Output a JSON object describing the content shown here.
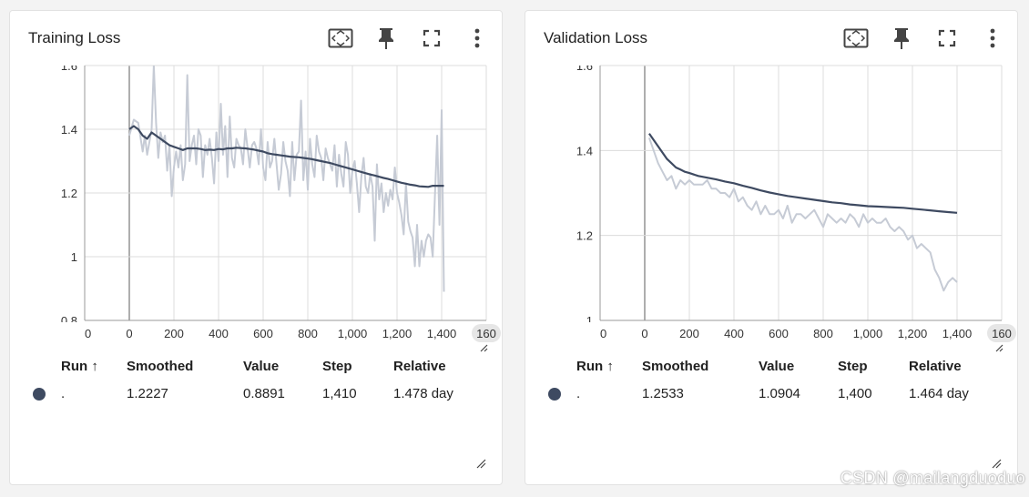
{
  "accent_color": "#3e4a61",
  "raw_color": "#c6cbd5",
  "cards": [
    {
      "title": "Training Loss",
      "toolbar": {
        "fit": "fit-domain-icon",
        "pin": "pin-icon",
        "fullscreen": "fullscreen-icon",
        "more": "more-vert-icon"
      },
      "chart_data": {
        "type": "line",
        "title": "Training Loss",
        "xlim": [
          -200,
          1600
        ],
        "ylim": [
          0.8,
          1.6
        ],
        "x_ticks": [
          "00",
          "0",
          "200",
          "400",
          "600",
          "800",
          "1,000",
          "1,200",
          "1,400",
          "160"
        ],
        "y_ticks": [
          "1.6",
          "1.4",
          "1.2",
          "1",
          "0.8"
        ],
        "series": [
          {
            "name": "raw",
            "x": [
              0,
              20,
              40,
              60,
              70,
              80,
              90,
              100,
              110,
              120,
              130,
              140,
              150,
              160,
              170,
              180,
              190,
              200,
              210,
              220,
              230,
              240,
              250,
              260,
              270,
              280,
              290,
              300,
              310,
              320,
              330,
              340,
              350,
              360,
              370,
              380,
              390,
              400,
              410,
              420,
              430,
              440,
              450,
              460,
              470,
              480,
              490,
              500,
              510,
              520,
              530,
              540,
              550,
              560,
              570,
              580,
              590,
              600,
              610,
              620,
              630,
              640,
              650,
              660,
              670,
              680,
              690,
              700,
              710,
              720,
              730,
              740,
              750,
              760,
              770,
              780,
              790,
              800,
              810,
              820,
              830,
              840,
              850,
              860,
              870,
              880,
              890,
              900,
              910,
              920,
              930,
              940,
              950,
              960,
              970,
              980,
              990,
              1000,
              1010,
              1020,
              1030,
              1040,
              1050,
              1060,
              1070,
              1080,
              1090,
              1100,
              1110,
              1120,
              1130,
              1140,
              1150,
              1160,
              1170,
              1180,
              1190,
              1200,
              1210,
              1220,
              1230,
              1240,
              1250,
              1260,
              1270,
              1280,
              1290,
              1300,
              1310,
              1320,
              1330,
              1340,
              1350,
              1360,
              1370,
              1380,
              1390,
              1400,
              1410
            ],
            "y": [
              1.38,
              1.43,
              1.42,
              1.33,
              1.38,
              1.32,
              1.36,
              1.4,
              1.6,
              1.42,
              1.31,
              1.39,
              1.36,
              1.38,
              1.27,
              1.35,
              1.19,
              1.28,
              1.33,
              1.28,
              1.35,
              1.24,
              1.29,
              1.57,
              1.3,
              1.35,
              1.38,
              1.29,
              1.4,
              1.38,
              1.25,
              1.35,
              1.32,
              1.37,
              1.31,
              1.23,
              1.39,
              1.3,
              1.48,
              1.32,
              1.41,
              1.25,
              1.44,
              1.31,
              1.28,
              1.37,
              1.35,
              1.34,
              1.29,
              1.4,
              1.34,
              1.28,
              1.35,
              1.36,
              1.34,
              1.29,
              1.4,
              1.28,
              1.24,
              1.36,
              1.28,
              1.3,
              1.37,
              1.29,
              1.21,
              1.26,
              1.36,
              1.3,
              1.27,
              1.19,
              1.36,
              1.24,
              1.32,
              1.33,
              1.49,
              1.24,
              1.33,
              1.21,
              1.37,
              1.29,
              1.25,
              1.38,
              1.33,
              1.31,
              1.24,
              1.34,
              1.31,
              1.29,
              1.27,
              1.35,
              1.22,
              1.32,
              1.26,
              1.22,
              1.36,
              1.32,
              1.2,
              1.27,
              1.3,
              1.23,
              1.14,
              1.25,
              1.31,
              1.22,
              1.2,
              1.26,
              1.22,
              1.05,
              1.29,
              1.18,
              1.23,
              1.14,
              1.2,
              1.16,
              1.21,
              1.18,
              1.28,
              1.2,
              1.17,
              1.13,
              1.07,
              1.23,
              1.11,
              1.08,
              1.06,
              0.97,
              1.1,
              0.97,
              1.05,
              1.0,
              1.05,
              1.07,
              1.06,
              1.0,
              1.19,
              1.38,
              1.1,
              1.46,
              0.89
            ]
          },
          {
            "name": "smoothed",
            "x": [
              0,
              20,
              40,
              60,
              80,
              100,
              120,
              140,
              160,
              180,
              200,
              220,
              240,
              260,
              280,
              300,
              320,
              340,
              360,
              380,
              400,
              420,
              440,
              460,
              480,
              500,
              520,
              540,
              560,
              580,
              600,
              620,
              640,
              660,
              680,
              700,
              720,
              740,
              760,
              780,
              800,
              820,
              840,
              860,
              880,
              900,
              920,
              940,
              960,
              980,
              1000,
              1020,
              1040,
              1060,
              1080,
              1100,
              1120,
              1140,
              1160,
              1180,
              1200,
              1220,
              1240,
              1260,
              1280,
              1300,
              1320,
              1340,
              1360,
              1380,
              1400,
              1410
            ],
            "y": [
              1.4,
              1.41,
              1.4,
              1.38,
              1.37,
              1.39,
              1.38,
              1.37,
              1.36,
              1.35,
              1.345,
              1.34,
              1.335,
              1.34,
              1.34,
              1.34,
              1.338,
              1.335,
              1.336,
              1.335,
              1.338,
              1.337,
              1.34,
              1.34,
              1.342,
              1.341,
              1.34,
              1.338,
              1.336,
              1.333,
              1.33,
              1.325,
              1.322,
              1.32,
              1.318,
              1.316,
              1.314,
              1.313,
              1.312,
              1.31,
              1.308,
              1.306,
              1.303,
              1.3,
              1.297,
              1.294,
              1.29,
              1.286,
              1.282,
              1.278,
              1.274,
              1.27,
              1.266,
              1.262,
              1.258,
              1.255,
              1.251,
              1.247,
              1.244,
              1.24,
              1.236,
              1.232,
              1.229,
              1.226,
              1.224,
              1.221,
              1.22,
              1.219,
              1.2225,
              1.2227,
              1.2227,
              1.2227
            ]
          }
        ]
      },
      "table": {
        "headers": [
          "Run ↑",
          "Smoothed",
          "Value",
          "Step",
          "Relative"
        ],
        "rows": [
          {
            "color": "#3e4a61",
            "run": ".",
            "smoothed": "1.2227",
            "value": "0.8891",
            "step": "1,410",
            "relative": "1.478 day"
          }
        ]
      }
    },
    {
      "title": "Validation Loss",
      "toolbar": {
        "fit": "fit-domain-icon",
        "pin": "pin-icon",
        "fullscreen": "fullscreen-icon",
        "more": "more-vert-icon"
      },
      "chart_data": {
        "type": "line",
        "title": "Validation Loss",
        "xlim": [
          -200,
          1600
        ],
        "ylim": [
          1.0,
          1.6
        ],
        "x_ticks": [
          "00",
          "0",
          "200",
          "400",
          "600",
          "800",
          "1,000",
          "1,200",
          "1,400",
          "160"
        ],
        "y_ticks": [
          "1.6",
          "1.4",
          "1.2",
          "1"
        ],
        "series": [
          {
            "name": "raw",
            "x": [
              20,
              40,
              60,
              80,
              100,
              120,
              140,
              160,
              180,
              200,
              220,
              240,
              260,
              280,
              300,
              320,
              340,
              360,
              380,
              400,
              420,
              440,
              460,
              480,
              500,
              520,
              540,
              560,
              580,
              600,
              620,
              640,
              660,
              680,
              700,
              720,
              740,
              760,
              780,
              800,
              820,
              840,
              860,
              880,
              900,
              920,
              940,
              960,
              980,
              1000,
              1020,
              1040,
              1060,
              1080,
              1100,
              1120,
              1140,
              1160,
              1180,
              1200,
              1220,
              1240,
              1260,
              1280,
              1300,
              1320,
              1340,
              1360,
              1380,
              1400
            ],
            "y": [
              1.43,
              1.4,
              1.37,
              1.35,
              1.33,
              1.34,
              1.31,
              1.33,
              1.32,
              1.33,
              1.32,
              1.32,
              1.32,
              1.33,
              1.31,
              1.31,
              1.3,
              1.3,
              1.29,
              1.31,
              1.28,
              1.29,
              1.27,
              1.26,
              1.28,
              1.25,
              1.27,
              1.25,
              1.25,
              1.26,
              1.24,
              1.27,
              1.23,
              1.25,
              1.25,
              1.24,
              1.25,
              1.26,
              1.24,
              1.22,
              1.25,
              1.24,
              1.23,
              1.24,
              1.23,
              1.25,
              1.24,
              1.22,
              1.25,
              1.23,
              1.24,
              1.23,
              1.23,
              1.24,
              1.22,
              1.21,
              1.22,
              1.21,
              1.19,
              1.2,
              1.17,
              1.18,
              1.17,
              1.16,
              1.12,
              1.1,
              1.07,
              1.09,
              1.1,
              1.09
            ]
          },
          {
            "name": "smoothed",
            "x": [
              20,
              40,
              60,
              80,
              100,
              120,
              140,
              160,
              180,
              200,
              240,
              280,
              320,
              360,
              400,
              440,
              480,
              520,
              560,
              600,
              640,
              680,
              720,
              760,
              800,
              840,
              880,
              920,
              960,
              1000,
              1040,
              1080,
              1120,
              1160,
              1200,
              1240,
              1280,
              1320,
              1360,
              1400
            ],
            "y": [
              1.44,
              1.425,
              1.41,
              1.395,
              1.38,
              1.37,
              1.36,
              1.355,
              1.35,
              1.347,
              1.34,
              1.336,
              1.332,
              1.327,
              1.323,
              1.317,
              1.312,
              1.306,
              1.301,
              1.297,
              1.293,
              1.29,
              1.287,
              1.284,
              1.281,
              1.278,
              1.276,
              1.273,
              1.271,
              1.269,
              1.268,
              1.267,
              1.266,
              1.265,
              1.263,
              1.261,
              1.259,
              1.257,
              1.255,
              1.2533
            ]
          }
        ]
      },
      "table": {
        "headers": [
          "Run ↑",
          "Smoothed",
          "Value",
          "Step",
          "Relative"
        ],
        "rows": [
          {
            "color": "#3e4a61",
            "run": ".",
            "smoothed": "1.2533",
            "value": "1.0904",
            "step": "1,400",
            "relative": "1.464 day"
          }
        ]
      }
    }
  ],
  "watermark": "CSDN @mailangduoduo"
}
